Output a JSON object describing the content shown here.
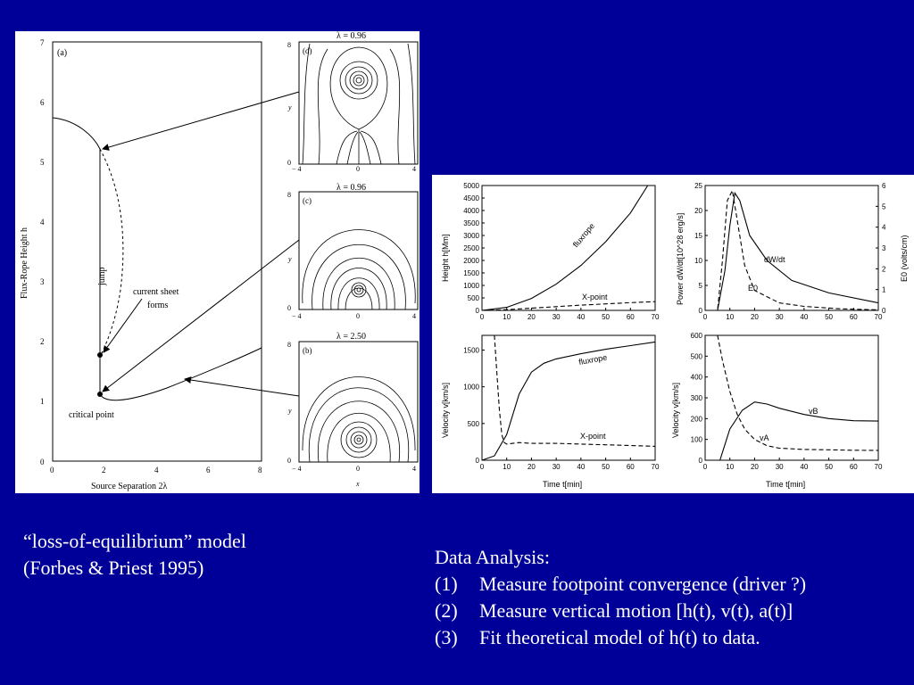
{
  "left_figure": {
    "main_plot": {
      "panel_label": "(a)",
      "y_label": "Flux-Rope Height h",
      "x_label": "Source Separation 2λ",
      "y_ticks": [
        "0",
        "1",
        "2",
        "3",
        "4",
        "5",
        "6",
        "7"
      ],
      "x_ticks": [
        "0",
        "2",
        "4",
        "6",
        "8"
      ],
      "annotations": {
        "jump": "jump",
        "current_sheet_line1": "current sheet",
        "current_sheet_line2": "forms",
        "critical_point": "critical point"
      }
    },
    "insets": [
      {
        "title": "λ = 0.96",
        "panel_label": "(d)",
        "x_ticks": [
          "− 4",
          "0",
          "4"
        ],
        "y_ticks": [
          "8",
          "0"
        ],
        "y_label": "y",
        "x_label": ""
      },
      {
        "title": "λ = 0.96",
        "panel_label": "(c)",
        "x_ticks": [
          "− 4",
          "0",
          "4"
        ],
        "y_ticks": [
          "8",
          "0"
        ],
        "y_label": "y",
        "x_label": ""
      },
      {
        "title": "λ = 2.50",
        "panel_label": "(b)",
        "x_ticks": [
          "− 4",
          "0",
          "4"
        ],
        "y_ticks": [
          "8",
          "0"
        ],
        "y_label": "y",
        "x_label": "x"
      }
    ]
  },
  "chart_data": [
    {
      "type": "line",
      "panel": "top-left",
      "xlabel": "",
      "ylabel": "Height h[Mm]",
      "xlim": [
        0,
        70
      ],
      "ylim": [
        0,
        5000
      ],
      "x_ticks": [
        "0",
        "10",
        "20",
        "30",
        "40",
        "50",
        "60",
        "70"
      ],
      "y_ticks": [
        "0",
        "500",
        "1000",
        "1500",
        "2000",
        "2500",
        "3000",
        "3500",
        "4000",
        "4500",
        "5000"
      ],
      "series": [
        {
          "name": "fluxrope",
          "style": "solid",
          "x": [
            0,
            10,
            20,
            30,
            40,
            50,
            60,
            67
          ],
          "y": [
            0,
            120,
            480,
            1050,
            1800,
            2750,
            3900,
            5000
          ]
        },
        {
          "name": "X-point",
          "style": "dashed",
          "x": [
            0,
            10,
            20,
            30,
            40,
            50,
            60,
            70
          ],
          "y": [
            0,
            30,
            90,
            150,
            210,
            260,
            310,
            350
          ]
        }
      ]
    },
    {
      "type": "line",
      "panel": "top-right",
      "xlabel": "",
      "ylabel": "Power dW/dt[10^28 erg/s]",
      "ylabel_right": "E0 (volts/cm)",
      "xlim": [
        0,
        70
      ],
      "ylim": [
        0,
        25
      ],
      "ylim_right": [
        0,
        6
      ],
      "x_ticks": [
        "0",
        "10",
        "20",
        "30",
        "40",
        "50",
        "60",
        "70"
      ],
      "y_ticks": [
        "0",
        "5",
        "10",
        "15",
        "20",
        "25"
      ],
      "y_ticks_right": [
        "0",
        "1",
        "2",
        "3",
        "4",
        "5",
        "6"
      ],
      "series": [
        {
          "name": "dW/dt",
          "style": "solid",
          "x": [
            0,
            5,
            8,
            10,
            12,
            14,
            18,
            25,
            35,
            50,
            70
          ],
          "y": [
            0,
            0,
            8,
            17,
            23.5,
            22,
            15,
            10,
            6,
            3.5,
            1.5
          ]
        },
        {
          "name": "E0",
          "style": "dashed",
          "x": [
            0,
            5,
            7,
            9,
            11,
            13,
            16,
            20,
            30,
            40,
            55,
            70
          ],
          "y": [
            0,
            0,
            10,
            22,
            24,
            18,
            9,
            4,
            1.5,
            0.8,
            0.3,
            0.1
          ]
        }
      ]
    },
    {
      "type": "line",
      "panel": "bottom-left",
      "xlabel": "Time t[min]",
      "ylabel": "Velocity v[km/s]",
      "xlim": [
        0,
        70
      ],
      "ylim": [
        0,
        1700
      ],
      "x_ticks": [
        "0",
        "10",
        "20",
        "30",
        "40",
        "50",
        "60",
        "70"
      ],
      "y_ticks": [
        "0",
        "500",
        "1000",
        "1500"
      ],
      "series": [
        {
          "name": "fluxrope",
          "style": "solid",
          "x": [
            0,
            5,
            10,
            15,
            20,
            25,
            30,
            40,
            50,
            60,
            70
          ],
          "y": [
            0,
            60,
            350,
            900,
            1200,
            1320,
            1380,
            1450,
            1510,
            1560,
            1610
          ]
        },
        {
          "name": "X-point",
          "style": "dashed",
          "x": [
            5,
            6,
            7,
            8,
            9,
            10,
            15,
            20,
            30,
            40,
            50,
            60,
            70
          ],
          "y": [
            1700,
            1200,
            700,
            350,
            240,
            220,
            240,
            230,
            230,
            220,
            210,
            200,
            190
          ]
        }
      ]
    },
    {
      "type": "line",
      "panel": "bottom-right",
      "xlabel": "Time t[min]",
      "ylabel": "Velocity v[km/s]",
      "xlim": [
        0,
        70
      ],
      "ylim": [
        0,
        600
      ],
      "x_ticks": [
        "0",
        "10",
        "20",
        "30",
        "40",
        "50",
        "60",
        "70"
      ],
      "y_ticks": [
        "0",
        "100",
        "200",
        "300",
        "400",
        "500",
        "600"
      ],
      "series": [
        {
          "name": "vB",
          "style": "solid",
          "x": [
            6,
            10,
            15,
            20,
            25,
            30,
            40,
            50,
            60,
            70
          ],
          "y": [
            0,
            150,
            240,
            280,
            270,
            250,
            220,
            200,
            190,
            188
          ]
        },
        {
          "name": "vA",
          "style": "dashed",
          "x": [
            5,
            7,
            10,
            13,
            16,
            20,
            25,
            30,
            40,
            50,
            60,
            70
          ],
          "y": [
            600,
            480,
            330,
            220,
            150,
            100,
            70,
            58,
            52,
            50,
            48,
            47
          ]
        }
      ]
    }
  ],
  "right_figure_labels": {
    "fluxrope_top": "fluxrope",
    "xpoint_top": "X-point",
    "dwdt": "dW/dt",
    "e0": "E0",
    "fluxrope_bottom": "fluxrope",
    "xpoint_bottom": "X-point",
    "vb": "vB",
    "va": "vA"
  },
  "captions": {
    "model_line1": "“loss-of-equilibrium” model",
    "model_line2": "(Forbes & Priest 1995)",
    "analysis_title": "Data Analysis:",
    "steps": [
      {
        "num": "(1)",
        "text": "Measure footpoint convergence (driver ?)"
      },
      {
        "num": "(2)",
        "text": "Measure vertical motion [h(t), v(t), a(t)]"
      },
      {
        "num": "(3)",
        "text": "Fit theoretical model of h(t) to data."
      }
    ]
  }
}
